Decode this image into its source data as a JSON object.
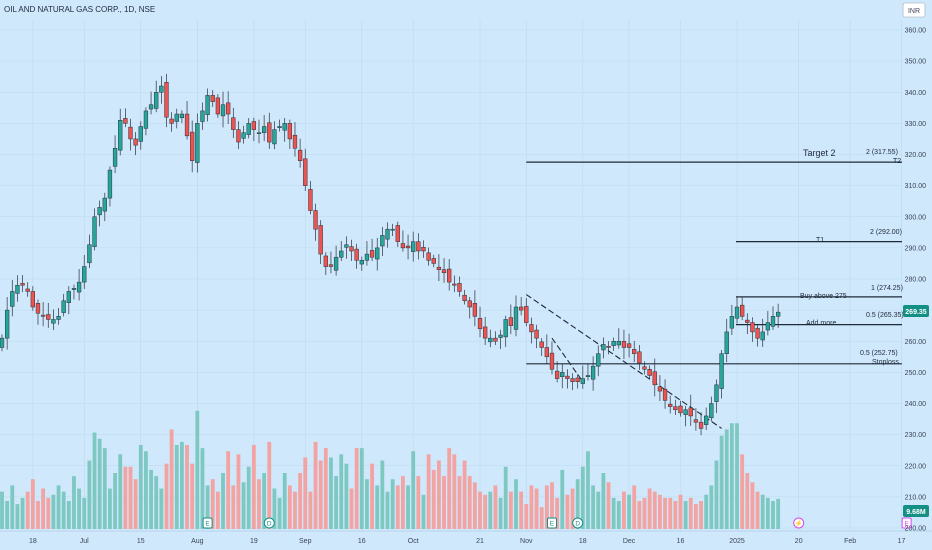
{
  "header": {
    "title": "OIL AND NATURAL GAS CORP., 1D, NSE",
    "currency": "INR"
  },
  "chart_data": {
    "type": "candlestick",
    "price_axis": {
      "min": 200,
      "max": 360,
      "ticks": [
        200,
        210,
        220,
        230,
        240,
        250,
        260,
        270,
        280,
        290,
        300,
        310,
        320,
        330,
        340,
        350,
        360
      ]
    },
    "x_labels": [
      {
        "label": "18",
        "i": 6
      },
      {
        "label": "Jul",
        "i": 16
      },
      {
        "label": "15",
        "i": 27
      },
      {
        "label": "Aug",
        "i": 38
      },
      {
        "label": "19",
        "i": 49
      },
      {
        "label": "Sep",
        "i": 59
      },
      {
        "label": "16",
        "i": 70
      },
      {
        "label": "Oct",
        "i": 80
      },
      {
        "label": "21",
        "i": 93
      },
      {
        "label": "Nov",
        "i": 102
      },
      {
        "label": "18",
        "i": 113
      },
      {
        "label": "Dec",
        "i": 122
      },
      {
        "label": "16",
        "i": 132
      },
      {
        "label": "2025",
        "i": 143
      },
      {
        "label": "20",
        "i": 155
      },
      {
        "label": "Feb",
        "i": 165
      },
      {
        "label": "17",
        "i": 175
      }
    ],
    "closes": [
      261,
      270,
      276,
      278,
      278,
      276,
      271,
      269,
      268,
      267,
      267,
      268,
      273,
      276,
      277,
      279,
      284,
      291,
      300,
      303,
      306,
      315,
      322,
      331,
      330,
      325,
      323,
      329,
      334,
      336,
      340,
      342,
      332,
      330,
      333,
      333,
      326,
      318,
      330,
      334,
      339,
      337,
      333,
      336,
      333,
      328,
      324,
      327,
      330,
      328,
      327,
      329,
      324,
      328,
      329,
      330,
      325,
      322,
      318,
      310,
      302,
      296,
      288,
      284,
      284,
      287,
      289,
      291,
      289,
      286,
      286,
      288,
      287,
      290,
      294,
      296,
      296,
      292,
      290,
      290,
      292,
      289,
      289,
      286,
      285,
      283,
      282,
      279,
      278,
      276,
      273,
      271,
      268,
      264,
      261,
      261,
      260,
      262,
      267,
      265,
      271,
      270,
      266,
      263,
      261,
      258,
      255,
      251,
      248,
      250,
      248,
      247,
      247,
      248,
      249,
      252,
      256,
      259,
      258,
      260,
      260,
      258,
      258,
      256,
      253,
      251,
      249,
      246,
      244,
      241,
      239,
      238,
      237,
      238,
      236,
      234,
      232,
      236,
      240,
      246,
      256,
      263,
      268,
      271,
      268,
      266,
      263,
      261,
      263,
      266,
      268,
      269.35
    ],
    "volume_last": "9.68M",
    "volume_axis_max_millions": 45,
    "volumes": [
      12,
      9,
      14,
      8,
      10,
      12,
      16,
      9,
      13,
      10,
      11,
      14,
      12,
      9,
      17,
      13,
      10,
      22,
      31,
      29,
      26,
      13,
      18,
      24,
      20,
      20,
      16,
      27,
      25,
      19,
      17,
      13,
      21,
      32,
      27,
      28,
      27,
      21,
      38,
      26,
      14,
      16,
      12,
      18,
      25,
      14,
      24,
      15,
      20,
      27,
      16,
      18,
      28,
      13,
      10,
      18,
      14,
      12,
      18,
      23,
      12,
      28,
      22,
      26,
      23,
      17,
      24,
      21,
      13,
      26,
      26,
      16,
      21,
      14,
      22,
      12,
      16,
      14,
      17,
      14,
      25,
      17,
      11,
      24,
      19,
      22,
      17,
      26,
      24,
      17,
      22,
      17,
      15,
      12,
      11,
      12,
      14,
      10,
      20,
      12,
      16,
      12,
      8,
      14,
      13,
      7,
      14,
      15,
      10,
      19,
      11,
      13,
      16,
      20,
      25,
      14,
      12,
      18,
      15,
      10,
      9,
      12,
      11,
      14,
      9,
      10,
      13,
      12,
      11,
      10,
      10,
      9,
      11,
      9,
      10,
      8,
      9,
      11,
      14,
      22,
      30,
      32,
      34,
      34,
      24,
      18,
      15,
      12,
      11,
      10,
      9,
      9.68
    ],
    "annotations": {
      "target2": "Target 2",
      "fib_2_top": "2 (317.55)",
      "t2": "T2",
      "fib_2": "2 (292.00)",
      "t1": "T1",
      "fib_1": "1 (274.25)",
      "buy_above": "Buy above 275",
      "fib_05_mid": "0.5 (265.35)",
      "add_more": "Add more",
      "fib_05_low": "0.5 (252.75)",
      "stoploss": "Stoploss",
      "last_price": "269.35"
    },
    "levels": {
      "target2": 317.55,
      "t1": 292.0,
      "buy": 274.25,
      "add": 265.35,
      "stop": 252.75
    },
    "trendlines": {
      "upper": [
        {
          "i": 102,
          "p": 275
        },
        {
          "i": 140,
          "p": 232
        }
      ],
      "lower": [
        {
          "i": 107,
          "p": 261
        },
        {
          "i": 113,
          "p": 247
        }
      ],
      "level_start_i": 102
    },
    "events": [
      {
        "type": "earnings",
        "i": 40,
        "letter": "E"
      },
      {
        "type": "dividend",
        "i": 52,
        "letter": "D"
      },
      {
        "type": "earnings",
        "i": 107,
        "letter": "E"
      },
      {
        "type": "dividend",
        "i": 112,
        "letter": "D"
      },
      {
        "type": "split",
        "i": 155,
        "letter": "⚡"
      },
      {
        "type": "earnings",
        "i": 176,
        "letter": "E"
      }
    ],
    "colors": {
      "up": "#26a69a",
      "down": "#ef5350",
      "vol_up": "#7ec8c2",
      "vol_down": "#f2a3a2",
      "price_label": "#138f84",
      "event": "#138f84",
      "event_future": "#d946ef"
    }
  }
}
